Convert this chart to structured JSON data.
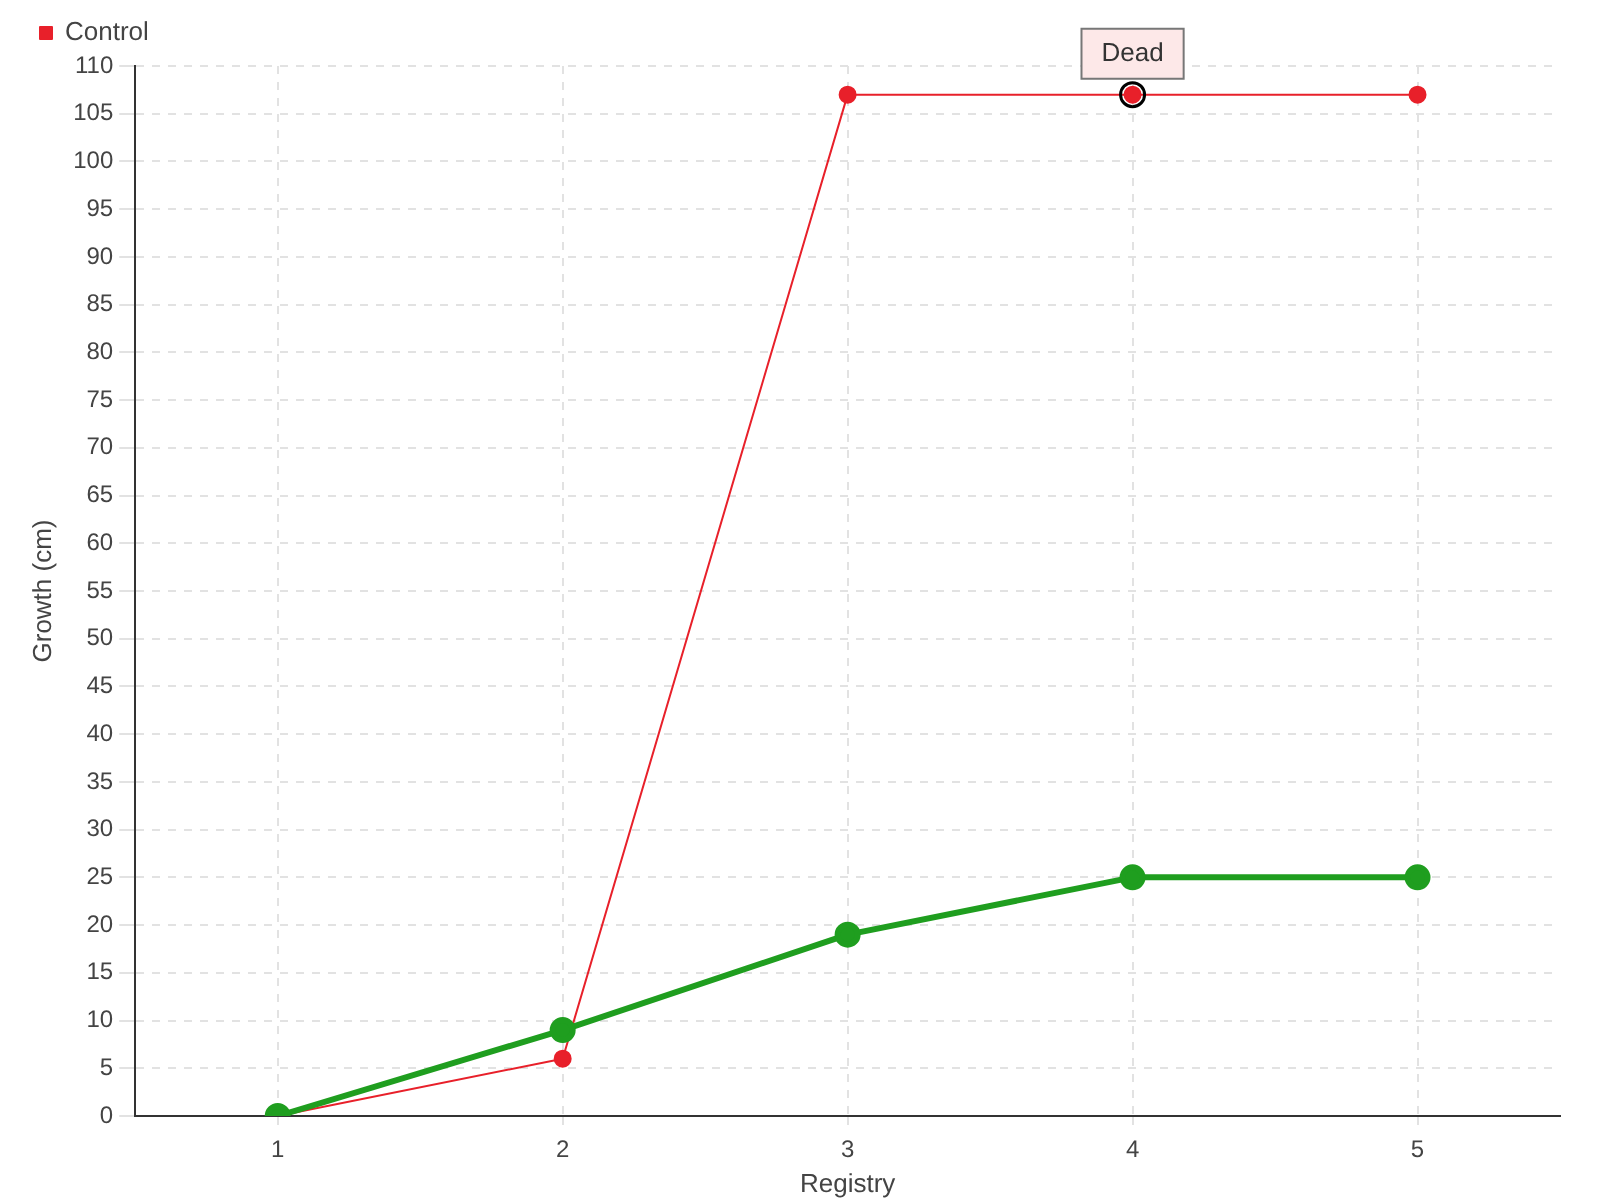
{
  "chart_data": {
    "type": "line",
    "xlabel": "Registry",
    "ylabel": "Growth (cm)",
    "categories": [
      "1",
      "2",
      "3",
      "4",
      "5"
    ],
    "series": [
      {
        "color": "#1f9e1f",
        "values": [
          0,
          9,
          19,
          25,
          25
        ]
      },
      {
        "name": "Control",
        "color": "#e8202a",
        "values": [
          0,
          6,
          107,
          107,
          107
        ]
      }
    ],
    "ylim": [
      0,
      110
    ],
    "yticks": [
      0,
      5,
      10,
      15,
      20,
      25,
      30,
      35,
      40,
      45,
      50,
      55,
      60,
      65,
      70,
      75,
      80,
      85,
      90,
      95,
      100,
      105,
      110
    ],
    "grid": true,
    "legend": "top left",
    "marker": "circle",
    "line_style": "solid",
    "annotations": [
      {
        "text": "Dead",
        "x": "4",
        "y": 107
      }
    ]
  }
}
